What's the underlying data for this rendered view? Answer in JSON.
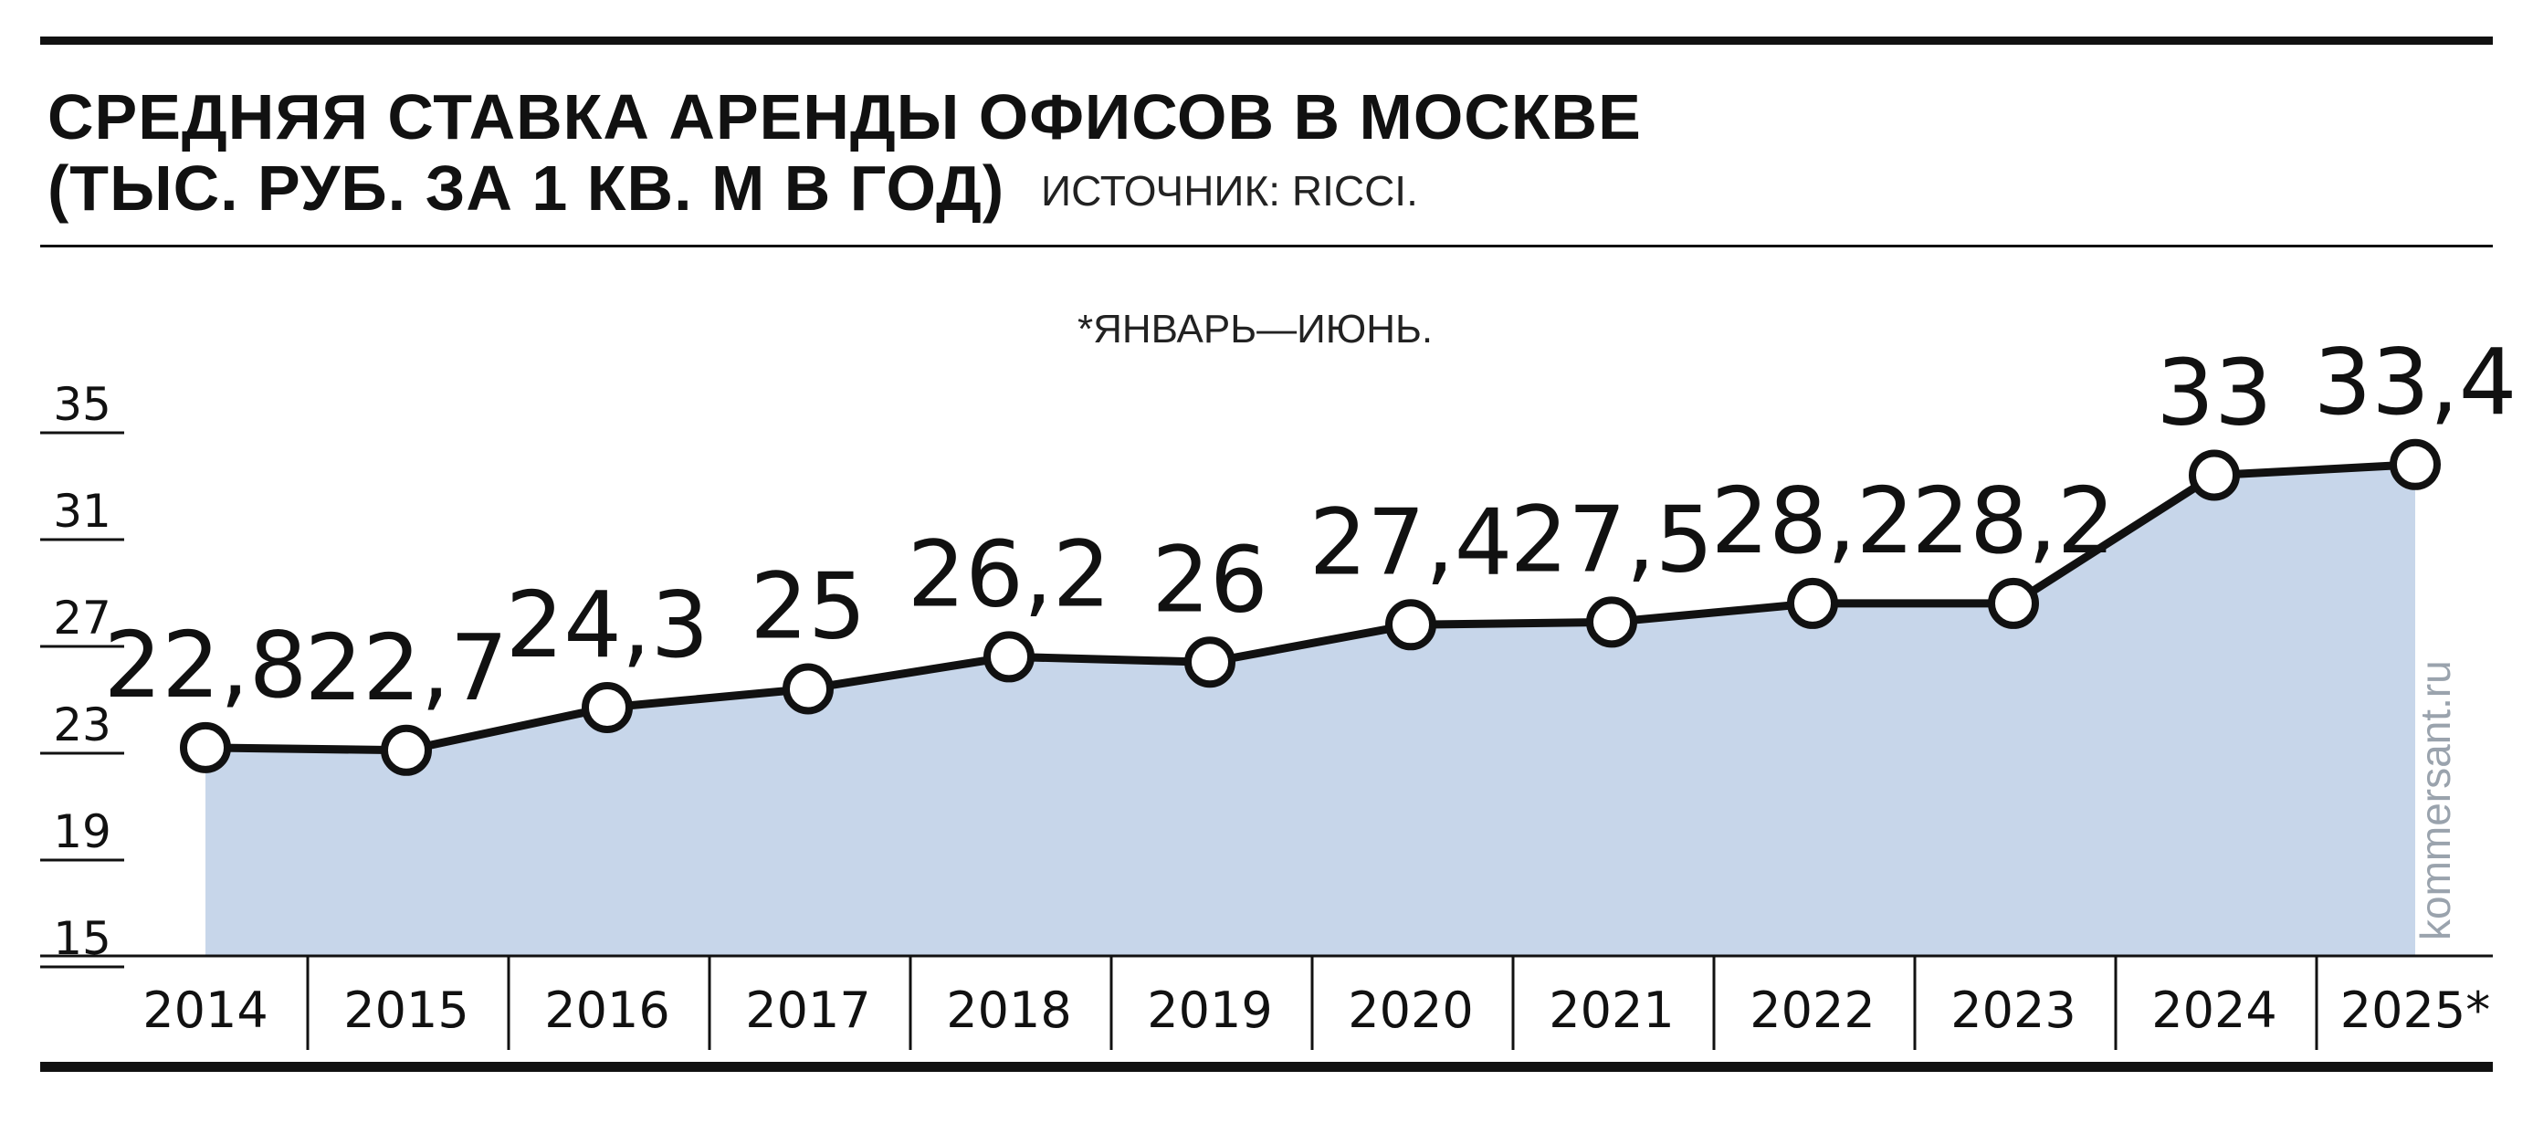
{
  "title_line1": "СРЕДНЯЯ СТАВКА АРЕНДЫ ОФИСОВ В МОСКВЕ",
  "title_line2": "(ТЫС. РУБ. ЗА 1 КВ. М В ГОД)",
  "source": "ИСТОЧНИК: RICCI.",
  "note": "*ЯНВАРЬ—ИЮНЬ.",
  "watermark": "kommersant.ru",
  "colors": {
    "area": "#c7d6ea",
    "line": "#111111",
    "marker_fill": "#ffffff"
  },
  "chart_data": {
    "type": "area",
    "title": "СРЕДНЯЯ СТАВКА АРЕНДЫ ОФИСОВ В МОСКВЕ (ТЫС. РУБ. ЗА 1 КВ. М В ГОД)",
    "categories": [
      "2014",
      "2015",
      "2016",
      "2017",
      "2018",
      "2019",
      "2020",
      "2021",
      "2022",
      "2023",
      "2024",
      "2025*"
    ],
    "values": [
      22.8,
      22.7,
      24.3,
      25,
      26.2,
      26,
      27.4,
      27.5,
      28.2,
      28.2,
      33,
      33.4
    ],
    "value_labels": [
      "22,8",
      "22,7",
      "24,3",
      "25",
      "26,2",
      "26",
      "27,4",
      "27,5",
      "28,2",
      "28,2",
      "33",
      "33,4"
    ],
    "yticks": [
      15,
      19,
      23,
      27,
      31,
      35
    ],
    "ylim": [
      15,
      35
    ],
    "xlabel": "",
    "ylabel": "",
    "grid": false,
    "markers": true
  }
}
